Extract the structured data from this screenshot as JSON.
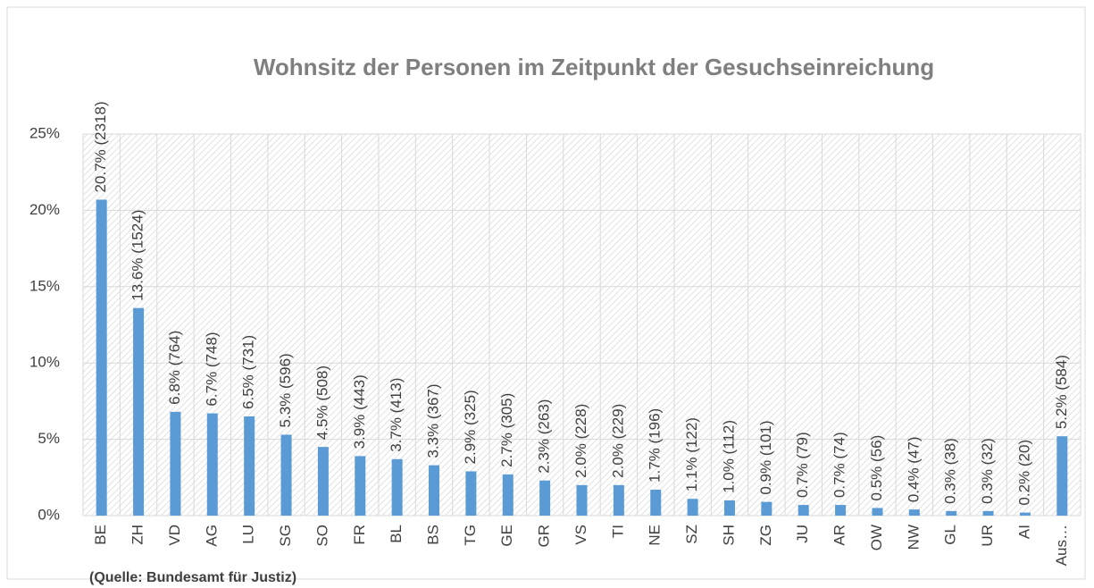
{
  "chart_data": {
    "type": "bar",
    "title": "Wohnsitz der Personen im Zeitpunkt der Gesuchseinreichung",
    "categories": [
      "BE",
      "ZH",
      "VD",
      "AG",
      "LU",
      "SG",
      "SO",
      "FR",
      "BL",
      "BS",
      "TG",
      "GE",
      "GR",
      "VS",
      "TI",
      "NE",
      "SZ",
      "SH",
      "ZG",
      "JU",
      "AR",
      "OW",
      "NW",
      "GL",
      "UR",
      "AI",
      "Aus…"
    ],
    "values": [
      20.7,
      13.6,
      6.8,
      6.7,
      6.5,
      5.3,
      4.5,
      3.9,
      3.7,
      3.3,
      2.9,
      2.7,
      2.3,
      2.0,
      2.0,
      1.7,
      1.1,
      1.0,
      0.9,
      0.7,
      0.7,
      0.5,
      0.4,
      0.3,
      0.3,
      0.2,
      5.2
    ],
    "value_labels": [
      "20.7% (2318)",
      "13.6% (1524)",
      "6.8% (764)",
      "6.7% (748)",
      "6.5% (731)",
      "5.3% (596)",
      "4.5% (508)",
      "3.9% (443)",
      "3.7% (413)",
      "3.3% (367)",
      "2.9% (325)",
      "2.7% (305)",
      "2.3% (263)",
      "2.0% (228)",
      "2.0% (229)",
      "1.7% (196)",
      "1.1% (122)",
      "1.0% (112)",
      "0.9% (101)",
      "0.7% (79)",
      "0.7% (74)",
      "0.5% (56)",
      "0.4% (47)",
      "0.3% (38)",
      "0.3% (32)",
      "0.2% (20)",
      "5.2% (584)"
    ],
    "color": "#5b9bd5",
    "ylim": [
      0,
      25
    ],
    "yticks": [
      {
        "value": 0,
        "label": "0%"
      },
      {
        "value": 5,
        "label": "5%"
      },
      {
        "value": 10,
        "label": "10%"
      },
      {
        "value": 15,
        "label": "15%"
      },
      {
        "value": 20,
        "label": "20%"
      },
      {
        "value": 25,
        "label": "25%"
      }
    ],
    "grid": true,
    "annotations": [
      "(Quelle: Bundesamt für Justiz)"
    ]
  }
}
